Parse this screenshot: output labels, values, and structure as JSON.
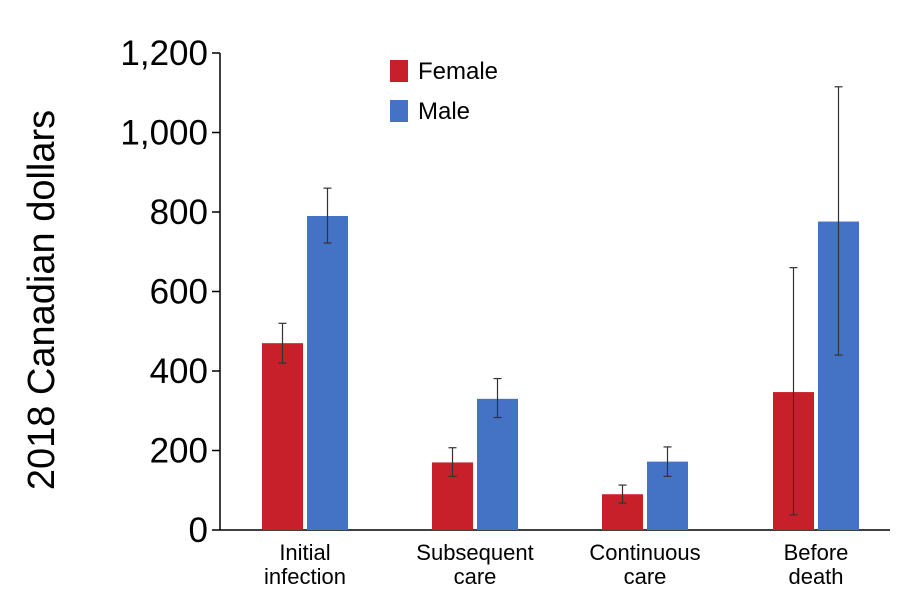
{
  "chart_data": {
    "type": "bar",
    "ylabel": "2018 Canadian dollars",
    "xlabel": "",
    "ylim": [
      0,
      1200
    ],
    "yticks": [
      0,
      200,
      400,
      600,
      800,
      1000,
      1200
    ],
    "ytick_labels": [
      "0",
      "200",
      "400",
      "600",
      "800",
      "1,000",
      "1,200"
    ],
    "categories": [
      [
        "Initial",
        "infection"
      ],
      [
        "Subsequent",
        "care"
      ],
      [
        "Continuous",
        "care"
      ],
      [
        "Before",
        "death"
      ]
    ],
    "series": [
      {
        "name": "Female",
        "color": "#c8202a",
        "values": [
          470,
          170,
          90,
          347
        ],
        "error_low": [
          420,
          135,
          68,
          38
        ],
        "error_high": [
          520,
          207,
          113,
          660
        ]
      },
      {
        "name": "Male",
        "color": "#4472c4",
        "values": [
          790,
          330,
          172,
          776
        ],
        "error_low": [
          722,
          283,
          135,
          440
        ],
        "error_high": [
          860,
          381,
          209,
          1115
        ]
      }
    ],
    "legend_position": "top-center",
    "grid": false,
    "error_bars": true
  }
}
